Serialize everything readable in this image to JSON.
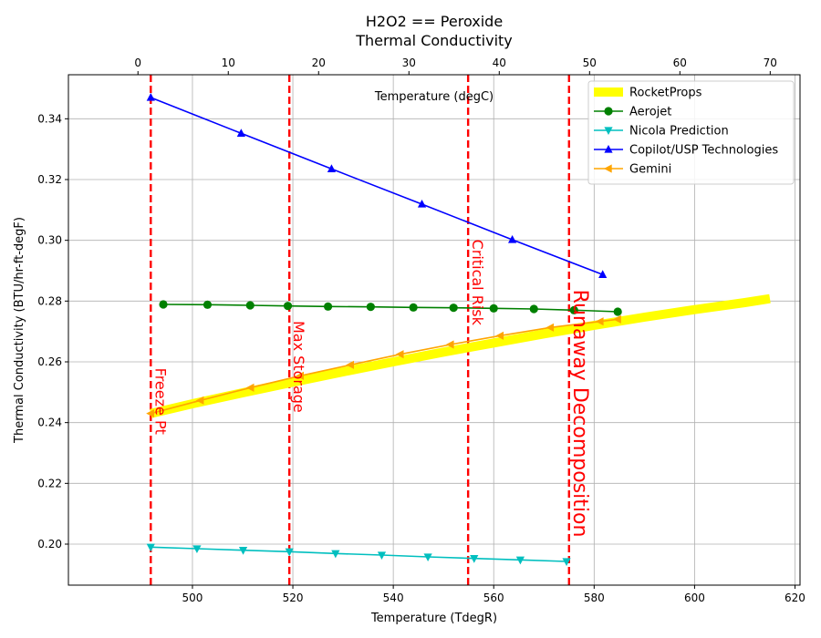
{
  "chart_data": {
    "type": "line",
    "title": "H2O2 == Peroxide",
    "subtitle": "Thermal Conductivity",
    "xlabel": "Temperature (TdegR)",
    "ylabel": "Thermal Conductivity (BTU/hr-ft-degF)",
    "x2label": "Temperature (degC)",
    "xlim": [
      475.3,
      621.0
    ],
    "ylim": [
      0.1865,
      0.3545
    ],
    "x2lim": [
      -7.7,
      73.3
    ],
    "x_ticks": [
      500,
      520,
      540,
      560,
      580,
      600,
      620
    ],
    "y_ticks": [
      0.2,
      0.22,
      0.24,
      0.26,
      0.28,
      0.3,
      0.32,
      0.34
    ],
    "y_tick_labels": [
      "0.20",
      "0.22",
      "0.24",
      "0.26",
      "0.28",
      "0.30",
      "0.32",
      "0.34"
    ],
    "x2_ticks": [
      0,
      10,
      20,
      30,
      40,
      50,
      60,
      70
    ],
    "grid": true,
    "legend_position": "top-right",
    "series": [
      {
        "name": "RocketProps",
        "color": "#ffff00",
        "marker": "none",
        "style": "thick",
        "x": [
          491.7,
          500,
          510,
          520,
          530,
          540,
          550,
          560,
          570,
          580,
          590,
          600,
          610,
          615
        ],
        "y": [
          0.243,
          0.2462,
          0.2498,
          0.2533,
          0.2567,
          0.26,
          0.2632,
          0.2662,
          0.2692,
          0.272,
          0.2747,
          0.2772,
          0.2795,
          0.2808
        ]
      },
      {
        "name": "Aerojet",
        "color": "#008000",
        "marker": "circle",
        "x": [
          494.2,
          503.0,
          511.5,
          519.0,
          527.0,
          535.5,
          544.0,
          552.0,
          560.0,
          568.0,
          576.0,
          584.7
        ],
        "y": [
          0.2789,
          0.2788,
          0.2786,
          0.2784,
          0.2782,
          0.2781,
          0.2779,
          0.2778,
          0.2776,
          0.2774,
          0.277,
          0.2765
        ]
      },
      {
        "name": "Nicola Prediction",
        "color": "#00bfbf",
        "marker": "triangle-down",
        "x": [
          491.7,
          500.9,
          510.1,
          519.3,
          528.5,
          537.7,
          546.9,
          556.1,
          565.3,
          574.5
        ],
        "y": [
          0.199,
          0.1985,
          0.198,
          0.1975,
          0.1969,
          0.1964,
          0.1958,
          0.1953,
          0.1948,
          0.1943
        ]
      },
      {
        "name": "Copilot/USP Technologies",
        "color": "#0000ff",
        "marker": "triangle-up",
        "x": [
          491.7,
          509.7,
          527.7,
          545.7,
          563.7,
          581.7
        ],
        "y": [
          0.347,
          0.3352,
          0.3235,
          0.3119,
          0.3002,
          0.2887
        ]
      },
      {
        "name": "Gemini",
        "color": "#ffa500",
        "marker": "triangle-left",
        "x": [
          491.7,
          501.6,
          511.6,
          521.5,
          531.5,
          541.4,
          551.4,
          561.3,
          571.3,
          581.2,
          584.7
        ],
        "y": [
          0.243,
          0.2473,
          0.2515,
          0.2554,
          0.259,
          0.2625,
          0.2657,
          0.2686,
          0.2713,
          0.2733,
          0.274
        ]
      }
    ],
    "vlines": [
      {
        "x": 491.7,
        "label": "Freeze Pt",
        "color": "#ff0000",
        "label_y": 0.258,
        "size": "medium"
      },
      {
        "x": 519.3,
        "label": "Max Storage",
        "color": "#ff0000",
        "label_y": 0.2735,
        "size": "medium"
      },
      {
        "x": 554.9,
        "label": "Critical Risk",
        "color": "#ff0000",
        "label_y": 0.3003,
        "size": "medium"
      },
      {
        "x": 575.0,
        "label": "Runaway Decomposition",
        "color": "#ff0000",
        "label_y": 0.2838,
        "size": "large"
      }
    ]
  }
}
